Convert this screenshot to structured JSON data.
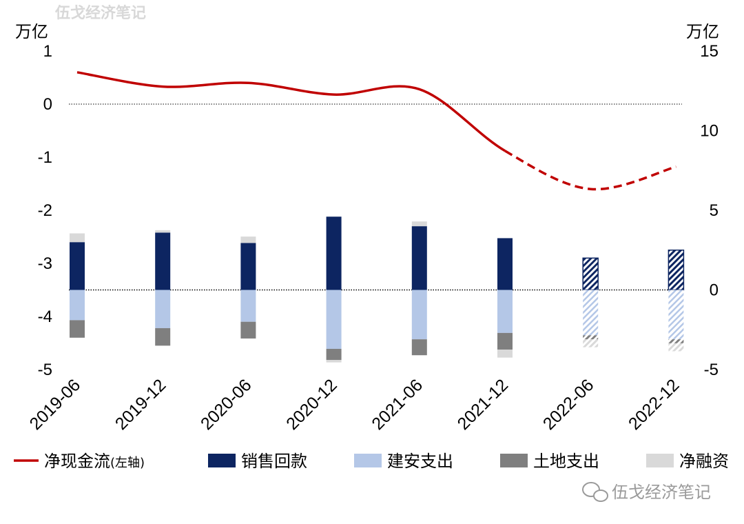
{
  "watermark_top": "伍戈经济笔记",
  "watermark_bottom": "伍戈经济笔记",
  "chart_data": {
    "type": "bar",
    "categories": [
      "2019-06",
      "2019-12",
      "2020-06",
      "2020-12",
      "2021-06",
      "2021-12",
      "2022-06",
      "2022-12"
    ],
    "left_axis": {
      "unit": "万亿",
      "range": [
        -5,
        1
      ],
      "ticks": [
        1,
        0,
        -1,
        -2,
        -3,
        -4,
        -5
      ]
    },
    "right_axis": {
      "unit": "万亿",
      "range": [
        -5,
        15
      ],
      "ticks": [
        15,
        10,
        5,
        0,
        -5
      ]
    },
    "forecast_from": "2022-06",
    "series": [
      {
        "name": "净现金流",
        "name_note": "(左轴)",
        "kind": "line",
        "axis": "left",
        "color": "#c00000",
        "values": [
          0.6,
          0.33,
          0.4,
          0.18,
          0.28,
          -0.88,
          -1.6,
          -1.18
        ]
      },
      {
        "name": "销售回款",
        "kind": "bar",
        "axis": "right",
        "color": "#0d2561",
        "values": [
          3.0,
          3.6,
          2.95,
          4.6,
          4.0,
          3.25,
          2.0,
          2.5
        ]
      },
      {
        "name": "建安支出",
        "kind": "bar",
        "axis": "right",
        "color": "#b4c7e7",
        "values": [
          -1.9,
          -2.4,
          -2.0,
          -3.7,
          -3.1,
          -2.7,
          -2.85,
          -3.1
        ]
      },
      {
        "name": "土地支出",
        "kind": "bar",
        "axis": "right",
        "color": "#7f7f7f",
        "values": [
          -1.1,
          -1.1,
          -1.05,
          -0.7,
          -1.0,
          -1.05,
          -0.25,
          -0.25
        ]
      },
      {
        "name": "净融资",
        "kind": "bar",
        "axis": "right",
        "color": "#d9d9d9",
        "values": [
          0.55,
          0.15,
          0.4,
          -0.15,
          0.3,
          -0.5,
          -0.5,
          -0.5
        ]
      }
    ],
    "legend_position": "bottom",
    "grid": false
  }
}
